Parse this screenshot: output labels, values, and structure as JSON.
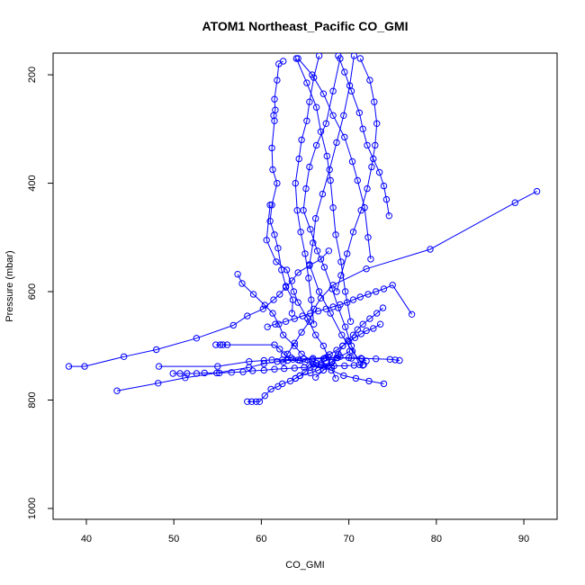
{
  "chart_data": {
    "type": "line",
    "title": "ATOM1 Northeast_Pacific CO_GMI",
    "xlabel": "CO_GMI",
    "ylabel": "Pressure (mbar)",
    "xlim": [
      36.2,
      93.8
    ],
    "ylim": [
      1020,
      160
    ],
    "y_reversed": true,
    "x_ticks": [
      "40",
      "50",
      "60",
      "70",
      "80",
      "90"
    ],
    "y_ticks": [
      "200",
      "400",
      "600",
      "800",
      "1000"
    ],
    "grid": false,
    "legend": "none",
    "series_color": "#0000ff",
    "marker": "open-circle",
    "series": [
      {
        "x": [
          62.5,
          62.0,
          61.8,
          61.5,
          61.6,
          61.4,
          61.5,
          61.2,
          61.3,
          61.8,
          61.2,
          61.0,
          61.5,
          61.9,
          62.3,
          62.8,
          63.6,
          63.5
        ],
        "y": [
          175,
          180,
          210,
          245,
          265,
          275,
          285,
          335,
          375,
          400,
          440,
          470,
          495,
          520,
          560,
          590,
          615,
          640
        ]
      },
      {
        "x": [
          64.2,
          65.8,
          67.1,
          68.2,
          69.5,
          70.4,
          71.0,
          71.8,
          72.2,
          72.5
        ],
        "y": [
          170,
          200,
          235,
          275,
          315,
          360,
          395,
          445,
          500,
          540
        ]
      },
      {
        "x": [
          64.0,
          65.2,
          66.3,
          66.8,
          67.5,
          67.9,
          68.2,
          68.5,
          69.1,
          69.6,
          70.2
        ],
        "y": [
          170,
          215,
          260,
          305,
          350,
          395,
          445,
          495,
          545,
          600,
          655
        ]
      },
      {
        "x": [
          68.8,
          69.5,
          70.3,
          71.2,
          71.6,
          72.1,
          72.8,
          73.5,
          74.0,
          74.3,
          74.6
        ],
        "y": [
          165,
          195,
          230,
          270,
          300,
          330,
          355,
          380,
          405,
          430,
          460
        ]
      },
      {
        "x": [
          71.3,
          72.4,
          72.9,
          73.2,
          73.0,
          72.6,
          72.1,
          71.4,
          70.5,
          69.8,
          69.1,
          68.6
        ],
        "y": [
          170,
          210,
          250,
          290,
          330,
          370,
          410,
          450,
          490,
          530,
          570,
          600
        ]
      },
      {
        "x": [
          66.6,
          66.0,
          65.5,
          65.2,
          64.6,
          64.3,
          63.9,
          64.1,
          64.5,
          65.0,
          65.4,
          65.7,
          66.0
        ],
        "y": [
          165,
          205,
          250,
          285,
          320,
          355,
          400,
          450,
          490,
          530,
          575,
          615,
          660
        ]
      },
      {
        "x": [
          69.0,
          68.2,
          67.4,
          66.3,
          65.5,
          65.1,
          64.8,
          65.6,
          66.4,
          67.2,
          68.1,
          68.8,
          69.6,
          70.3,
          71.2
        ],
        "y": [
          170,
          230,
          290,
          330,
          370,
          410,
          450,
          485,
          525,
          555,
          595,
          630,
          665,
          700,
          735
        ]
      },
      {
        "x": [
          70.6,
          70.1,
          69.4,
          68.6,
          67.8,
          67.0,
          66.2,
          65.9,
          65.5,
          66.6,
          67.9,
          69.2,
          70.4,
          71.7
        ],
        "y": [
          165,
          220,
          275,
          325,
          375,
          420,
          465,
          510,
          550,
          600,
          640,
          680,
          710,
          735
        ]
      },
      {
        "x": [
          61.0,
          60.6,
          61.7,
          62.9,
          63.7,
          64.2,
          65.3,
          66.2,
          67.1,
          67.6,
          68.0,
          68.5
        ],
        "y": [
          440,
          505,
          545,
          560,
          600,
          620,
          650,
          680,
          700,
          720,
          740,
          760
        ]
      },
      {
        "x": [
          91.5,
          89.0,
          79.3,
          72.0,
          68.2,
          66.8,
          66.0,
          65.5,
          64.6,
          63.8,
          63.0,
          62.5
        ],
        "y": [
          415,
          436,
          522,
          558,
          588,
          612,
          632,
          655,
          675,
          695,
          715,
          730
        ]
      },
      {
        "x": [
          57.3,
          57.8,
          59.1,
          60.4,
          61.3,
          62.0,
          62.5,
          63.8,
          64.6,
          65.8,
          66.9,
          68.0,
          69.4,
          70.8,
          72.3,
          74.0
        ],
        "y": [
          568,
          585,
          605,
          625,
          640,
          660,
          680,
          700,
          715,
          728,
          735,
          745,
          755,
          760,
          765,
          770
        ]
      },
      {
        "x": [
          38.0,
          39.8,
          44.3,
          48.0,
          52.6,
          56.8,
          58.4,
          60.2,
          61.4,
          62.1,
          62.8,
          63.5,
          64.2,
          65.5,
          66.8,
          67.7
        ],
        "y": [
          738,
          738,
          720,
          707,
          686,
          662,
          645,
          632,
          615,
          605,
          592,
          580,
          565,
          552,
          540,
          525
        ]
      },
      {
        "x": [
          43.5,
          48.2,
          51.3,
          54.9,
          58.6,
          60.3,
          61.8,
          63.0,
          64.4,
          65.8,
          67.2,
          68.6,
          70.0,
          71.4,
          73.1,
          74.7,
          75.3,
          75.8
        ],
        "y": [
          783,
          769,
          759,
          750,
          740,
          733,
          729,
          727,
          727,
          725,
          723,
          722,
          722,
          723,
          724,
          725,
          726,
          727
        ]
      },
      {
        "x": [
          49.9,
          50.7,
          51.5,
          52.6,
          53.5,
          55.2,
          56.6,
          57.9,
          59.0,
          60.3,
          61.5,
          62.6,
          63.8,
          64.9,
          66.0,
          67.2,
          68.3,
          69.5,
          70.6,
          71.6
        ],
        "y": [
          751,
          751,
          751,
          751,
          750,
          750,
          749,
          748,
          746,
          745,
          743,
          742,
          741,
          740,
          739,
          738,
          737,
          737,
          736,
          736
        ]
      },
      {
        "x": [
          48.3,
          55.0,
          58.6,
          60.3,
          61.2,
          62.4,
          63.6,
          64.8,
          65.9,
          67.4,
          68.7,
          70.3,
          71.5,
          72.0
        ],
        "y": [
          738,
          738,
          729,
          727,
          726,
          726,
          725,
          724,
          723,
          722,
          722,
          723,
          724,
          728
        ]
      },
      {
        "x": [
          58.4,
          58.9,
          59.4,
          59.8,
          60.4,
          61.1,
          61.9,
          62.4,
          63.3,
          63.9,
          64.4,
          65.6,
          66.5,
          67.2,
          68.1,
          69.0,
          70.1
        ],
        "y": [
          803,
          803,
          803,
          803,
          792,
          780,
          775,
          770,
          765,
          760,
          755,
          750,
          745,
          738,
          730,
          720,
          710
        ]
      },
      {
        "x": [
          54.8,
          55.3,
          55.6,
          56.1,
          61.5,
          62.1,
          62.6,
          63.4,
          64.2,
          65.0,
          65.9,
          66.8,
          67.6
        ],
        "y": [
          698,
          698,
          698,
          698,
          698,
          706,
          716,
          722,
          726,
          730,
          733,
          736,
          738
        ]
      },
      {
        "x": [
          60.7,
          61.6,
          62.8,
          63.8,
          64.7,
          65.6,
          66.5,
          67.4,
          68.2,
          69.0,
          69.8,
          70.5,
          71.3,
          72.2,
          73.1,
          74.0,
          75.0,
          77.2
        ],
        "y": [
          665,
          660,
          655,
          650,
          645,
          640,
          636,
          632,
          628,
          624,
          620,
          615,
          610,
          605,
          600,
          595,
          588,
          642
        ]
      },
      {
        "x": [
          66.2,
          67.1,
          68.0,
          68.8,
          69.3,
          69.9,
          70.5,
          71.0,
          71.6,
          72.4,
          73.2,
          73.9
        ],
        "y": [
          758,
          745,
          730,
          715,
          700,
          690,
          680,
          670,
          660,
          650,
          640,
          630
        ]
      },
      {
        "x": [
          63.9,
          64.4,
          65.0,
          65.6,
          66.3,
          67.1,
          67.8,
          68.6,
          69.3,
          70.0,
          70.7,
          71.4,
          72.0,
          72.8,
          73.6
        ],
        "y": [
          760,
          755,
          748,
          740,
          732,
          724,
          716,
          708,
          700,
          692,
          685,
          678,
          672,
          668,
          660
        ]
      }
    ]
  }
}
